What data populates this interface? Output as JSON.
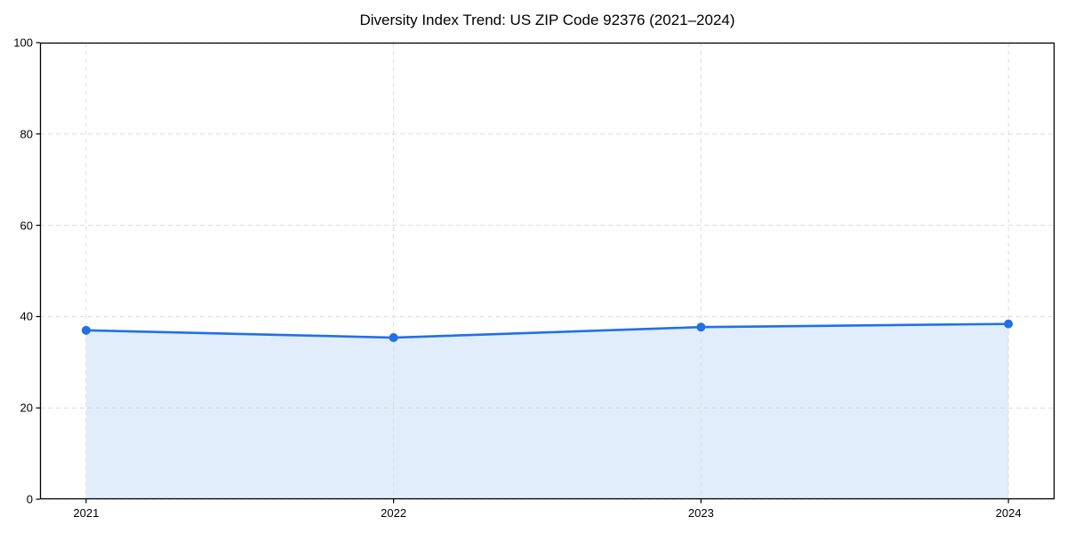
{
  "title": "Diversity Index Trend: US ZIP Code 92376 (2021–2024)",
  "chart_data": {
    "type": "area",
    "title": "Diversity Index Trend: US ZIP Code 92376 (2021–2024)",
    "x": [
      2021,
      2022,
      2023,
      2024
    ],
    "categories": [
      "2021",
      "2022",
      "2023",
      "2024"
    ],
    "series": [
      {
        "name": "Diversity Index",
        "values": [
          37.0,
          35.4,
          37.7,
          38.4
        ]
      }
    ],
    "xlabel": "",
    "ylabel": "",
    "xlim": [
      2020.85,
      2024.15
    ],
    "ylim": [
      0,
      100
    ],
    "yticks": [
      0,
      20,
      40,
      60,
      80,
      100
    ],
    "grid": true,
    "grid_style": "dashed",
    "legend": false,
    "colors": {
      "line": "#2171e5",
      "marker": "#2171e5",
      "fill": "rgba(33,113,229,0.13)",
      "grid": "#dcdcdc",
      "spine": "#000000",
      "tick": "#000000",
      "background": "#ffffff"
    },
    "marker_radius": 5,
    "line_width": 2.6
  }
}
